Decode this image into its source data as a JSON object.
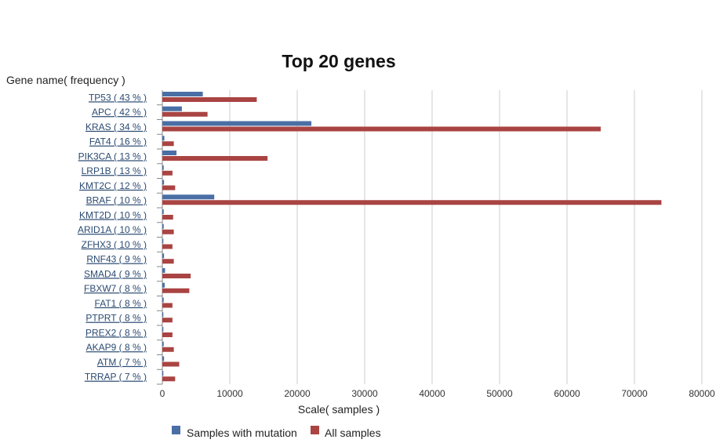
{
  "chart_data": {
    "type": "bar",
    "orientation": "horizontal",
    "title": "Top 20 genes",
    "ylabel": "Gene name( frequency )",
    "xlabel": "Scale( samples )",
    "xlim": [
      0,
      80000
    ],
    "xticks": [
      0,
      10000,
      20000,
      30000,
      40000,
      50000,
      60000,
      70000,
      80000
    ],
    "grid": "vertical",
    "legend_position": "bottom",
    "categories": [
      "TP53 ( 43 % )",
      "APC ( 42 % )",
      "KRAS ( 34 % )",
      "FAT4 ( 16 % )",
      "PIK3CA ( 13 % )",
      "LRP1B ( 13 % )",
      "KMT2C ( 12 % )",
      "BRAF ( 10 % )",
      "KMT2D ( 10 % )",
      "ARID1A ( 10 % )",
      "ZFHX3 ( 10 % )",
      "RNF43 ( 9 % )",
      "SMAD4 ( 9 % )",
      "FBXW7 ( 8 % )",
      "FAT1 ( 8 % )",
      "PTPRT ( 8 % )",
      "PREX2 ( 8 % )",
      "AKAP9 ( 8 % )",
      "ATM ( 7 % )",
      "TRRAP ( 7 % )"
    ],
    "series": [
      {
        "name": "Samples with mutation",
        "color": "#4a6fa5",
        "values": [
          6000,
          2900,
          22100,
          300,
          2100,
          200,
          250,
          7700,
          200,
          200,
          150,
          250,
          400,
          350,
          200,
          150,
          150,
          200,
          250,
          150
        ]
      },
      {
        "name": "All samples",
        "color": "#a94442",
        "values": [
          14000,
          6700,
          65000,
          1700,
          15600,
          1500,
          1900,
          74000,
          1600,
          1700,
          1500,
          1700,
          4200,
          4000,
          1500,
          1500,
          1500,
          1700,
          2500,
          1900
        ]
      }
    ]
  }
}
